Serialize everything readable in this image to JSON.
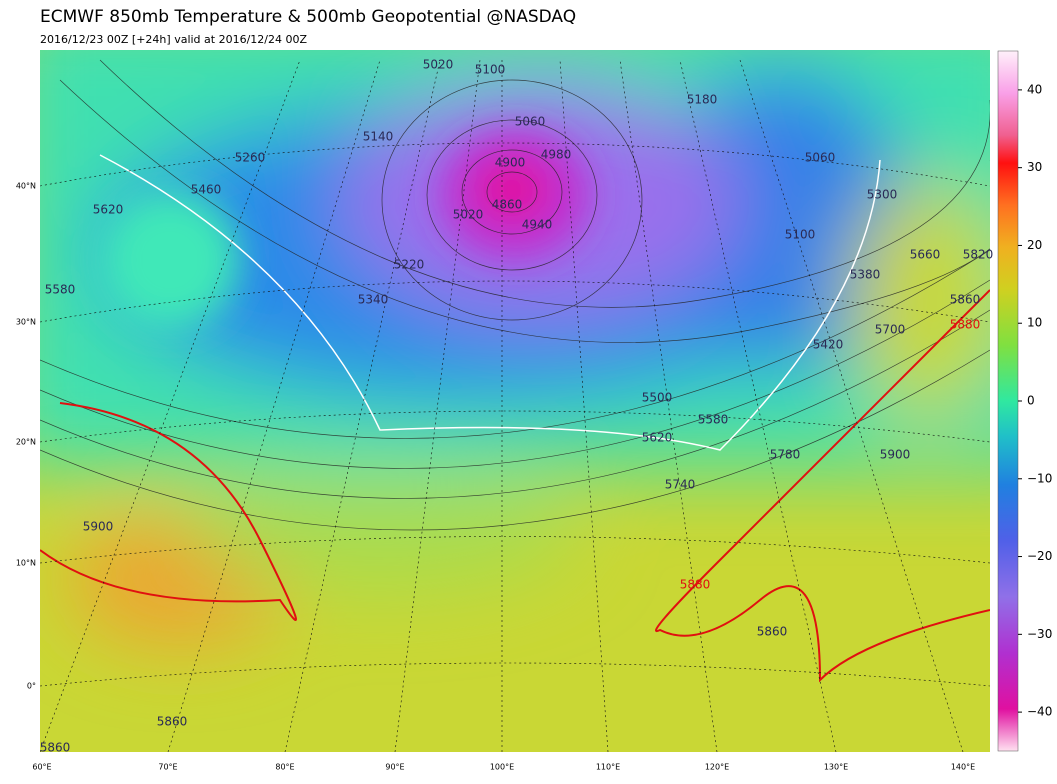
{
  "header": {
    "title": "ECMWF 850mb Temperature & 500mb Geopotential @NASDAQ",
    "subtitle": "2016/12/23 00Z [+24h] valid at 2016/12/24 00Z"
  },
  "map": {
    "lat_labels": [
      "40°N",
      "30°N",
      "20°N",
      "10°N",
      "0°"
    ],
    "lon_labels": [
      "60°E",
      "70°E",
      "80°E",
      "90°E",
      "100°E",
      "110°E",
      "120°E",
      "130°E",
      "140°E"
    ],
    "contour_labels": [
      "4900",
      "4860",
      "4940",
      "4980",
      "5020",
      "5060",
      "5100",
      "5020",
      "5180",
      "5060",
      "5100",
      "5300",
      "5660",
      "5820",
      "5380",
      "5860",
      "5880",
      "5700",
      "5420",
      "5140",
      "5260",
      "5460",
      "5620",
      "5580",
      "5220",
      "5340",
      "5500",
      "5580",
      "5620",
      "5780",
      "5900",
      "5740",
      "5900",
      "5880",
      "5860",
      "5860",
      "5860"
    ]
  },
  "colorbar": {
    "range": [
      -45,
      45
    ],
    "ticks": [
      40,
      30,
      20,
      10,
      0,
      {
        "value": -10,
        "label": "−10"
      },
      {
        "value": -20,
        "label": "−20"
      },
      {
        "value": -30,
        "label": "−30"
      },
      {
        "value": -40,
        "label": "−40"
      }
    ]
  }
}
